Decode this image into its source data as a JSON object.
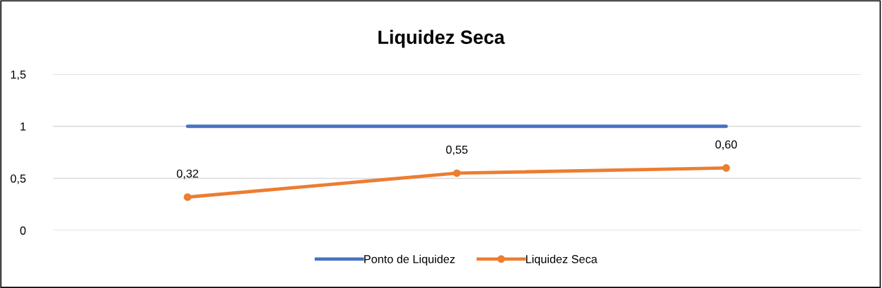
{
  "chart_data": {
    "type": "line",
    "title": "Liquidez Seca",
    "categories": [
      null,
      null,
      null
    ],
    "series": [
      {
        "name": "Ponto de Liquidez",
        "color": "#4472c4",
        "values": [
          1,
          1,
          1
        ],
        "marker": "none"
      },
      {
        "name": "Liquidez Seca",
        "color": "#ed7d31",
        "values": [
          0.32,
          0.55,
          0.6
        ],
        "marker": "circle",
        "value_labels": [
          "0,32",
          "0,55",
          "0,60"
        ]
      }
    ],
    "ylim": [
      0,
      1.5
    ],
    "yticks": [
      {
        "value": 0,
        "label": "0"
      },
      {
        "value": 0.5,
        "label": "0,5"
      },
      {
        "value": 1,
        "label": "1"
      },
      {
        "value": 1.5,
        "label": "1,5"
      }
    ],
    "grid": "y",
    "legend": "bottom",
    "line_style": "solid"
  }
}
